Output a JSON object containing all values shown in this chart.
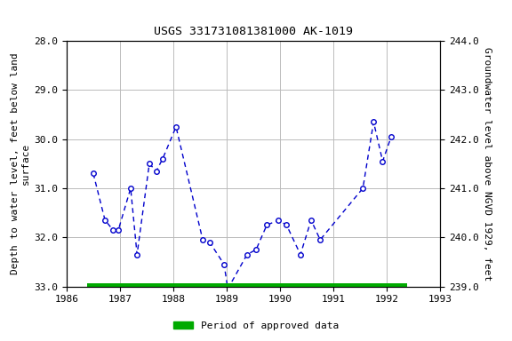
{
  "title": "USGS 331731081381000 AK-1019",
  "ylabel_left": "Depth to water level, feet below land\nsurface",
  "ylabel_right": "Groundwater level above NGVD 1929, feet",
  "ylim_left": [
    33.0,
    28.0
  ],
  "ylim_right": [
    239.0,
    244.0
  ],
  "yticks_left": [
    28.0,
    29.0,
    30.0,
    31.0,
    32.0,
    33.0
  ],
  "yticks_right": [
    239.0,
    240.0,
    241.0,
    242.0,
    243.0,
    244.0
  ],
  "xlim": [
    1986,
    1993
  ],
  "xticks": [
    1986,
    1987,
    1988,
    1989,
    1990,
    1991,
    1992,
    1993
  ],
  "x_data": [
    1986.5,
    1986.72,
    1986.87,
    1986.97,
    1987.2,
    1987.32,
    1987.55,
    1987.68,
    1987.8,
    1988.05,
    1988.55,
    1988.68,
    1988.95,
    1989.02,
    1989.38,
    1989.55,
    1989.75,
    1989.97,
    1990.12,
    1990.38,
    1990.58,
    1990.75,
    1991.55,
    1991.75,
    1991.92,
    1992.08
  ],
  "y_data": [
    30.7,
    31.65,
    31.85,
    31.85,
    31.0,
    32.35,
    30.5,
    30.65,
    30.4,
    29.75,
    32.05,
    32.1,
    32.55,
    33.05,
    32.35,
    32.25,
    31.75,
    31.65,
    31.75,
    32.35,
    31.65,
    32.05,
    31.0,
    29.65,
    30.45,
    29.95
  ],
  "line_color": "#0000cc",
  "marker_color": "#0000cc",
  "marker_face": "white",
  "marker_size": 4,
  "linestyle": "--",
  "green_bar_xstart": 1986.38,
  "green_bar_xend": 1992.38,
  "green_bar_y": 33.0,
  "green_bar_color": "#00aa00",
  "green_bar_height": 0.12,
  "legend_label": "Period of approved data",
  "background_color": "#ffffff",
  "grid_color": "#bbbbbb",
  "title_fontsize": 9.5,
  "label_fontsize": 8,
  "tick_fontsize": 8
}
